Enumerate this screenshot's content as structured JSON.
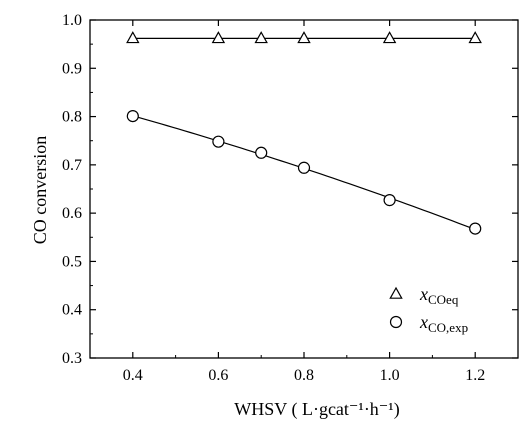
{
  "chart_data": {
    "type": "scatter",
    "title": "",
    "xlabel": "WHSV  ( L·gcat⁻¹·h⁻¹)",
    "ylabel": "CO conversion",
    "xlim": [
      0.3,
      1.3
    ],
    "ylim": [
      0.3,
      1.0
    ],
    "x_ticks": [
      "0.4",
      "0.6",
      "0.8",
      "1.0",
      "1.2"
    ],
    "y_ticks": [
      "0.3",
      "0.4",
      "0.5",
      "0.6",
      "0.7",
      "0.8",
      "0.9",
      "1.0"
    ],
    "grid": false,
    "legend_position": "bottom-right",
    "series": [
      {
        "name": "x_COeq",
        "marker": "triangle-open",
        "x": [
          0.4,
          0.6,
          0.7,
          0.8,
          1.0,
          1.2
        ],
        "y": [
          0.962,
          0.962,
          0.962,
          0.962,
          0.962,
          0.962
        ],
        "fit_line": true
      },
      {
        "name": "x_CO,exp",
        "marker": "circle-open",
        "x": [
          0.4,
          0.6,
          0.7,
          0.8,
          1.0,
          1.2
        ],
        "y": [
          0.801,
          0.748,
          0.725,
          0.694,
          0.627,
          0.568
        ],
        "fit_line": true
      }
    ],
    "legend": [
      {
        "symbol": "triangle-open",
        "italic": "x",
        "sub": "COeq"
      },
      {
        "symbol": "circle-open",
        "italic": "x",
        "sub": "CO,exp"
      }
    ]
  }
}
